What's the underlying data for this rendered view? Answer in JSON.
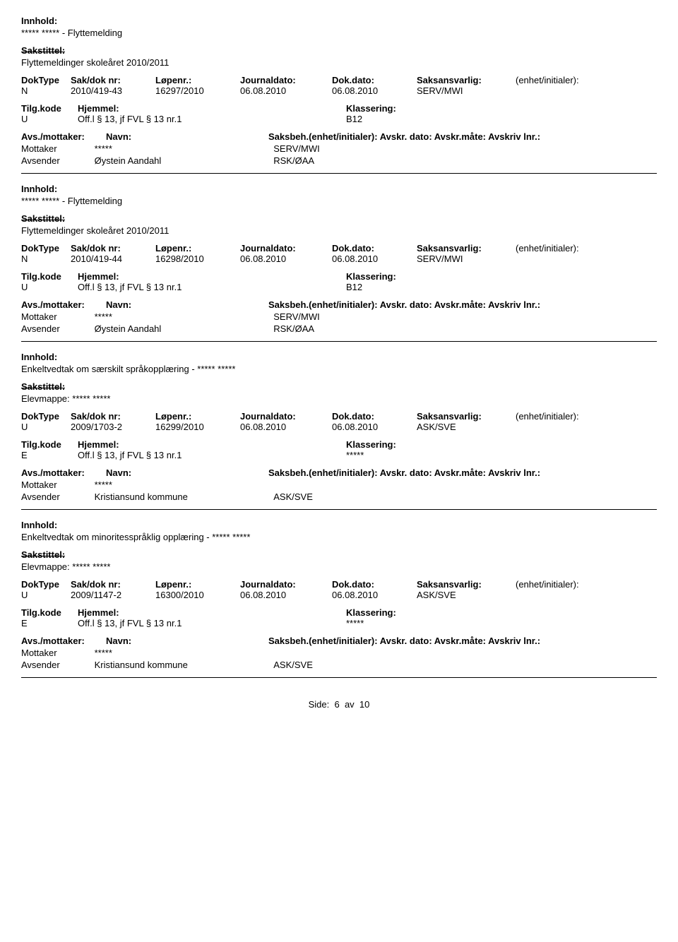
{
  "labels": {
    "innhold": "Innhold:",
    "sakstittel": "Sakstittel:",
    "doktype": "DokType",
    "sakdoknr": "Sak/dok nr:",
    "lopenr": "Løpenr.:",
    "journaldato": "Journaldato:",
    "dokdato": "Dok.dato:",
    "saksansvarlig": "Saksansvarlig:",
    "enhet": "(enhet/initialer):",
    "tilgkode": "Tilg.kode",
    "hjemmel": "Hjemmel:",
    "klassering": "Klassering:",
    "avsmottaker": "Avs./mottaker:",
    "navn": "Navn:",
    "saksbeh_line": "Saksbeh.(enhet/initialer): Avskr. dato:  Avskr.måte: Avskriv lnr.:",
    "mottaker": "Mottaker",
    "avsender": "Avsender",
    "side": "Side:",
    "page_num": "6",
    "av": "av",
    "page_total": "10"
  },
  "records": [
    {
      "innhold": "***** ***** - Flyttemelding",
      "sakstittel": "Flyttemeldinger skoleåret 2010/2011",
      "doktype": "N",
      "sakdoknr": "2010/419-43",
      "lopenr": "16297/2010",
      "journaldato": "06.08.2010",
      "dokdato": "06.08.2010",
      "saksansvarlig": "SERV/MWI",
      "tilgkode": "U",
      "hjemmel": "Off.l § 13, jf FVL § 13 nr.1",
      "klassering": "B12",
      "mottaker_navn": "*****",
      "mottaker_code": "SERV/MWI",
      "avsender_navn": "Øystein Aandahl",
      "avsender_code": "RSK/ØAA"
    },
    {
      "innhold": "***** ***** - Flyttemelding",
      "sakstittel": "Flyttemeldinger skoleåret 2010/2011",
      "doktype": "N",
      "sakdoknr": "2010/419-44",
      "lopenr": "16298/2010",
      "journaldato": "06.08.2010",
      "dokdato": "06.08.2010",
      "saksansvarlig": "SERV/MWI",
      "tilgkode": "U",
      "hjemmel": "Off.l § 13, jf FVL § 13 nr.1",
      "klassering": "B12",
      "mottaker_navn": "*****",
      "mottaker_code": "SERV/MWI",
      "avsender_navn": "Øystein Aandahl",
      "avsender_code": "RSK/ØAA"
    },
    {
      "innhold": "Enkeltvedtak om særskilt språkopplæring - ***** *****",
      "sakstittel": "Elevmappe: ***** *****",
      "doktype": "U",
      "sakdoknr": "2009/1703-2",
      "lopenr": "16299/2010",
      "journaldato": "06.08.2010",
      "dokdato": "06.08.2010",
      "saksansvarlig": "ASK/SVE",
      "tilgkode": "E",
      "hjemmel": "Off.l § 13, jf FVL § 13 nr.1",
      "klassering": "*****",
      "mottaker_navn": "*****",
      "mottaker_code": "",
      "avsender_navn": "Kristiansund kommune",
      "avsender_code": "ASK/SVE"
    },
    {
      "innhold": "Enkeltvedtak om minoritesspråklig opplæring - ***** *****",
      "sakstittel": "Elevmappe: ***** *****",
      "doktype": "U",
      "sakdoknr": "2009/1147-2",
      "lopenr": "16300/2010",
      "journaldato": "06.08.2010",
      "dokdato": "06.08.2010",
      "saksansvarlig": "ASK/SVE",
      "tilgkode": "E",
      "hjemmel": "Off.l § 13, jf FVL § 13 nr.1",
      "klassering": "*****",
      "mottaker_navn": "*****",
      "mottaker_code": "",
      "avsender_navn": "Kristiansund kommune",
      "avsender_code": "ASK/SVE"
    }
  ]
}
